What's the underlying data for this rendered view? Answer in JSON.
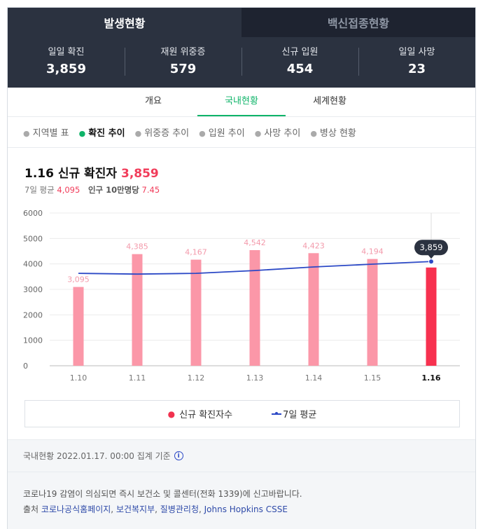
{
  "top_tabs": [
    {
      "label": "발생현황",
      "active": true
    },
    {
      "label": "백신접종현황",
      "active": false
    }
  ],
  "stats": [
    {
      "label": "일일 확진",
      "value": "3,859"
    },
    {
      "label": "재원 위중증",
      "value": "579"
    },
    {
      "label": "신규 입원",
      "value": "454"
    },
    {
      "label": "일일 사망",
      "value": "23"
    }
  ],
  "sub_tabs": [
    {
      "label": "개요",
      "active": false
    },
    {
      "label": "국내현황",
      "active": true
    },
    {
      "label": "세계현황",
      "active": false
    }
  ],
  "metric_tabs": [
    {
      "label": "지역별 표",
      "active": false
    },
    {
      "label": "확진 추이",
      "active": true
    },
    {
      "label": "위중증 추이",
      "active": false
    },
    {
      "label": "입원 추이",
      "active": false
    },
    {
      "label": "사망 추이",
      "active": false
    },
    {
      "label": "병상 현황",
      "active": false
    }
  ],
  "headline": {
    "prefix": "1.16 신규 확진자",
    "value": "3,859"
  },
  "subline": {
    "avg_label": "7일 평균",
    "avg_value": "4,095",
    "per_label": "인구 10만명당",
    "per_value": "7.45"
  },
  "chart_data": {
    "type": "bar",
    "categories": [
      "1.10",
      "1.11",
      "1.12",
      "1.13",
      "1.14",
      "1.15",
      "1.16"
    ],
    "series": [
      {
        "name": "신규 확진자수",
        "type": "bar",
        "values": [
          3095,
          4385,
          4167,
          4542,
          4423,
          4194,
          3859
        ]
      },
      {
        "name": "7일 평균",
        "type": "line",
        "values": [
          3630,
          3600,
          3630,
          3740,
          3880,
          3990,
          4095
        ]
      }
    ],
    "data_labels": [
      "3,095",
      "4,385",
      "4,167",
      "4,542",
      "4,423",
      "4,194",
      "3,859"
    ],
    "yticks": [
      0,
      1000,
      2000,
      3000,
      4000,
      5000,
      6000
    ],
    "ylim": [
      0,
      6000
    ],
    "highlight_index": 6,
    "grid": true,
    "legend": "bottom",
    "colors": {
      "bar": "#fb97a8",
      "bar_highlight": "#f7314f",
      "line": "#2c49c6",
      "label": "#f39aab"
    }
  },
  "legend": [
    {
      "label": "신규 확진자수"
    },
    {
      "label": "7일 평균"
    }
  ],
  "footer": {
    "basis": "국내현황 2022.01.17. 00:00 집계 기준",
    "notice": "코로나19 감염이 의심되면 즉시 보건소 및 콜센터(전화 1339)에 신고바랍니다.",
    "source_label": "출처",
    "sources": [
      "코로나공식홈페이지",
      "보건복지부",
      "질병관리청",
      "Johns Hopkins CSSE"
    ]
  }
}
